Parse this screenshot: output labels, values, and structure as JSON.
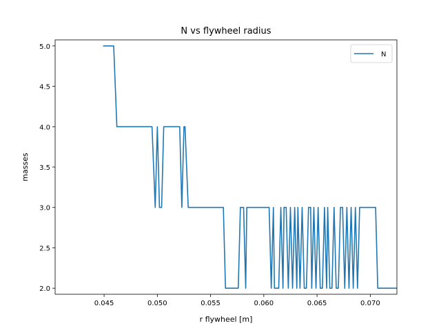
{
  "chart_data": {
    "type": "line",
    "title": "N vs flywheel radius",
    "xlabel": "r flywheel [m]",
    "ylabel": "masses",
    "xlim": [
      0.0404,
      0.0725
    ],
    "ylim": [
      1.925,
      5.075
    ],
    "xticks": [
      0.045,
      0.05,
      0.055,
      0.06,
      0.065,
      0.07
    ],
    "xtick_labels": [
      "0.045",
      "0.050",
      "0.055",
      "0.060",
      "0.065",
      "0.070"
    ],
    "yticks": [
      2.0,
      2.5,
      3.0,
      3.5,
      4.0,
      4.5,
      5.0
    ],
    "ytick_labels": [
      "2.0",
      "2.5",
      "3.0",
      "3.5",
      "4.0",
      "4.5",
      "5.0"
    ],
    "grid": false,
    "legend": {
      "position": "top-right",
      "entries": [
        "N"
      ]
    },
    "series": [
      {
        "name": "N",
        "color": "#1f77b4",
        "x": [
          0.0449,
          0.0459,
          0.0462,
          0.0495,
          0.0498,
          0.05,
          0.0502,
          0.0504,
          0.0506,
          0.0516,
          0.0521,
          0.0523,
          0.0525,
          0.0526,
          0.0529,
          0.0562,
          0.0564,
          0.0576,
          0.0578,
          0.0581,
          0.0583,
          0.0584,
          0.0605,
          0.0607,
          0.0609,
          0.061,
          0.0614,
          0.0616,
          0.0618,
          0.0619,
          0.0621,
          0.0623,
          0.0625,
          0.0627,
          0.0629,
          0.0631,
          0.0632,
          0.0634,
          0.0636,
          0.0638,
          0.064,
          0.0642,
          0.0644,
          0.0645,
          0.0647,
          0.0649,
          0.0651,
          0.0653,
          0.0655,
          0.0657,
          0.0659,
          0.066,
          0.0662,
          0.0664,
          0.0666,
          0.0668,
          0.067,
          0.0672,
          0.0674,
          0.0676,
          0.0678,
          0.068,
          0.0682,
          0.0684,
          0.0686,
          0.0688,
          0.069,
          0.0692,
          0.0694,
          0.0696,
          0.0698,
          0.0705,
          0.0707,
          0.0725
        ],
        "y": [
          5,
          5,
          4,
          4,
          3,
          4,
          3,
          3,
          4,
          4,
          4,
          3,
          4,
          4,
          3,
          3,
          2,
          2,
          3,
          3,
          2,
          3,
          3,
          2,
          3,
          2,
          2,
          3,
          2,
          3,
          3,
          2,
          3,
          2,
          3,
          2,
          3,
          2,
          3,
          2,
          2,
          3,
          3,
          2,
          3,
          2,
          3,
          2,
          2,
          3,
          2,
          3,
          2,
          2,
          3,
          2,
          2,
          3,
          3,
          2,
          3,
          2,
          3,
          2,
          3,
          2,
          3,
          3,
          3,
          3,
          3,
          3,
          2,
          2
        ]
      }
    ]
  }
}
